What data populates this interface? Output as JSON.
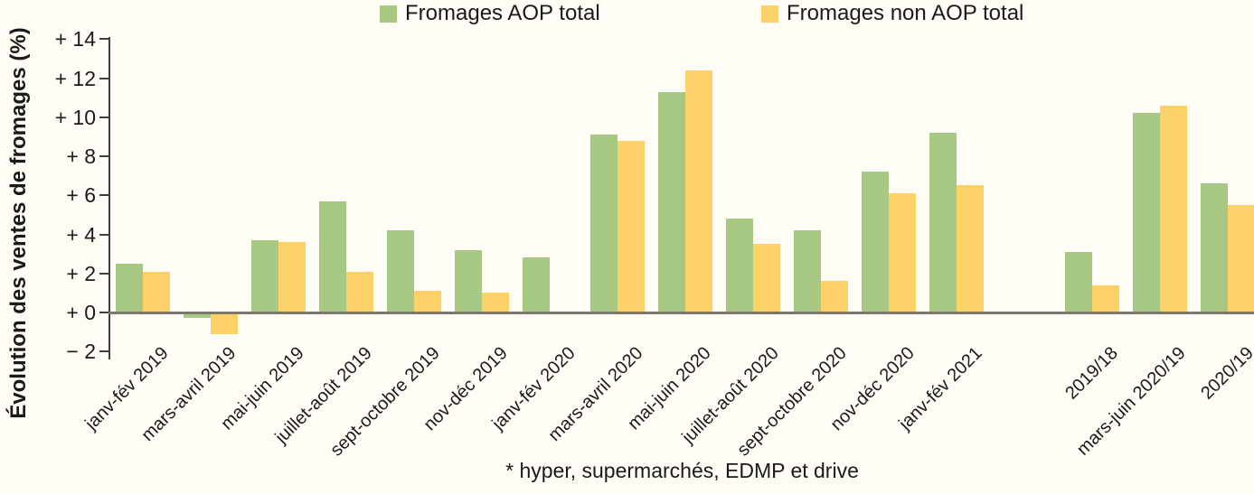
{
  "chart_data": {
    "type": "bar",
    "title": "",
    "ylabel": "Évolution des ventes de fromages (%)",
    "footnote": "* hyper, supermarchés, EDMP et drive",
    "ylim": [
      -2,
      14
    ],
    "ytick_step": 2,
    "ytick_labels": [
      "+ 14",
      "+ 12",
      "+ 10",
      "+ 8",
      "+ 6",
      "+ 4",
      "+ 2",
      "+ 0",
      "− 2"
    ],
    "grid": false,
    "legend_position": "top",
    "categories": [
      "janv-fév 2019",
      "mars-avril 2019",
      "mai-juin 2019",
      "juillet-août 2019",
      "sept-octobre 2019",
      "nov-déc 2019",
      "janv-fév 2020",
      "mars-avril 2020",
      "mai-juin 2020",
      "juillet-août 2020",
      "sept-octobre 2020",
      "nov-déc 2020",
      "janv-fév 2021",
      "2019/18",
      "mars-juin 2020/19",
      "2020/19"
    ],
    "section_break_before": 13,
    "series": [
      {
        "name": "Fromages AOP total",
        "color": "#a8c984",
        "values": [
          2.5,
          -0.3,
          3.7,
          5.7,
          4.2,
          3.2,
          2.8,
          9.1,
          11.3,
          4.8,
          4.2,
          7.2,
          9.2,
          3.1,
          10.2,
          6.6
        ]
      },
      {
        "name": "Fromages non AOP total",
        "color": "#fcd268",
        "values": [
          2.1,
          -1.1,
          3.6,
          2.1,
          1.1,
          1.0,
          null,
          8.8,
          12.4,
          3.5,
          1.6,
          6.1,
          6.5,
          1.4,
          10.6,
          5.5
        ]
      }
    ],
    "colors": {
      "background": "#fffdf6",
      "axis": "#3f3f3f",
      "baseline": "#7d776e",
      "text": "#1a1a1a"
    }
  }
}
